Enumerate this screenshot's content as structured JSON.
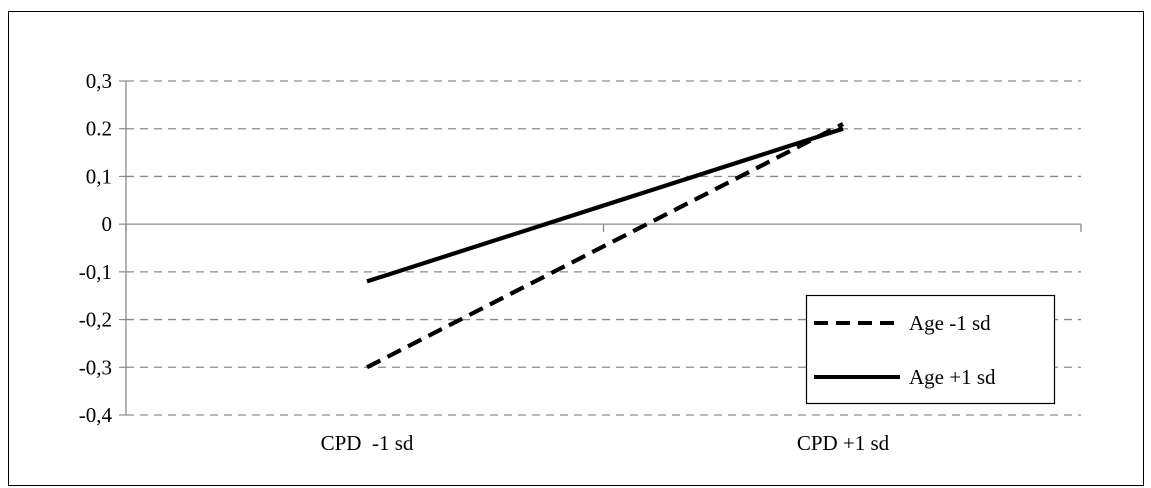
{
  "chart_data": {
    "type": "line",
    "title": "",
    "xlabel": "",
    "ylabel": "",
    "categories": [
      "CPD  -1 sd",
      "CPD +1 sd"
    ],
    "y_ticks": [
      "0,3",
      "0.2",
      "0,1",
      "0",
      "-0,1",
      "-0,2",
      "-0,3",
      "-0,4"
    ],
    "ylim": [
      -0.4,
      0.3
    ],
    "grid": true,
    "legend_position": "right",
    "series": [
      {
        "name": "Age -1 sd",
        "values": [
          -0.3,
          0.21
        ],
        "line_style": "dashed",
        "color": "#000000"
      },
      {
        "name": "Age +1 sd",
        "values": [
          -0.12,
          0.2
        ],
        "line_style": "solid",
        "color": "#000000"
      }
    ]
  }
}
